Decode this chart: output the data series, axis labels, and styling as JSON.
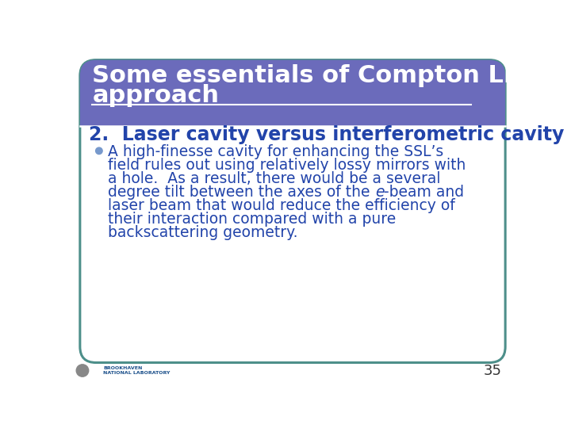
{
  "title_line1": "Some essentials of Compton LINAC",
  "title_line2": "approach",
  "title_color": "#ffffff",
  "title_bg_color": "#6B6BBB",
  "title_font_size": 22,
  "slide_bg_color": "#ffffff",
  "border_color": "#4d8f8a",
  "section_heading": "2.  Laser cavity versus interferometric cavity",
  "section_heading_color": "#2244aa",
  "section_heading_font_size": 17,
  "bullet_color": "#7799cc",
  "bullet_text_color": "#2244aa",
  "bullet_font_size": 13.5,
  "bullet_lines": [
    "A high-finesse cavity for enhancing the SSL’s",
    "field rules out using relatively lossy mirrors with",
    "a hole.  As a result, there would be a several",
    "degree tilt between the axes of the e-beam and",
    "laser beam that would reduce the efficiency of",
    "their interaction compared with a pure",
    "backscattering geometry."
  ],
  "page_number": "35",
  "page_number_color": "#333333",
  "page_number_font_size": 13
}
